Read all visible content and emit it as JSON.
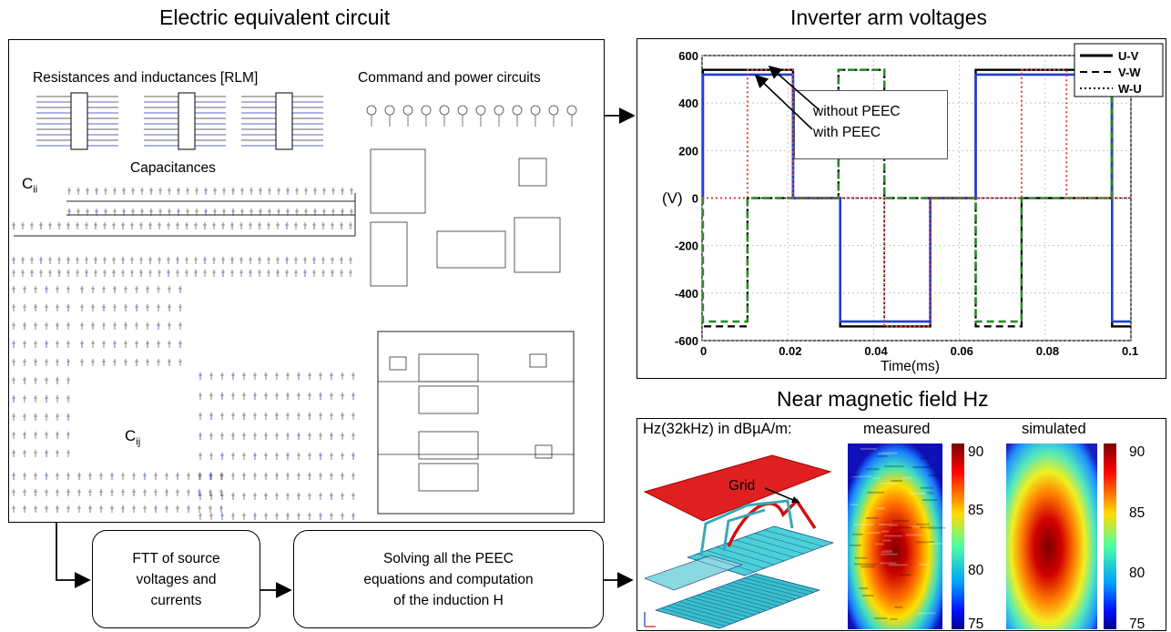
{
  "titles": {
    "circuit": "Electric equivalent circuit",
    "voltages": "Inverter arm voltages",
    "field": "Near magnetic field Hz"
  },
  "circuit_panel": {
    "rlm_label": "Resistances and inductances [RLM]",
    "command_label": "Command and power circuits",
    "cap_label": "Capacitances",
    "cii_main": "C",
    "cii_sub": "ii",
    "cij_main": "C",
    "cij_sub": "ij"
  },
  "flow_steps": [
    {
      "text": "FTT of source\nvoltages and\ncurrents"
    },
    {
      "text": "Solving all the PEEC\nequations and computation\nof the induction H"
    }
  ],
  "voltage_chart": {
    "annotation_without": "without PEEC",
    "annotation_with": "with PEEC"
  },
  "field_panel": {
    "header": "Hz(32kHz) in dBµA/m:",
    "measured": "measured",
    "simulated": "simulated",
    "grid_label": "Grid",
    "colorbar_ticks": [
      "90",
      "85",
      "80",
      "75"
    ]
  },
  "chart_data": {
    "type": "line",
    "ylabel": "(V)",
    "xlabel": "Time(ms)",
    "xlim": [
      0,
      0.1
    ],
    "ylim": [
      -600,
      600
    ],
    "xticks": [
      "0",
      "0.02",
      "0.04",
      "0.06",
      "0.08",
      "0.1"
    ],
    "yticks": [
      "600",
      "400",
      "200",
      "0",
      "-200",
      "-400",
      "-600"
    ],
    "grid": true,
    "legend_position": "top-right",
    "series": [
      {
        "name": "U-V",
        "style": "solid",
        "color": "#000000",
        "x": [
          0,
          0.0002,
          0.0002,
          0.0212,
          0.0212,
          0.0322,
          0.0322,
          0.0532,
          0.0532,
          0.0638,
          0.0638,
          0.0956,
          0.0956,
          0.1
        ],
        "y": [
          0,
          0,
          540,
          540,
          0,
          0,
          -540,
          -540,
          0,
          0,
          540,
          540,
          -540,
          -540
        ]
      },
      {
        "name": "V-W",
        "style": "dashed",
        "color": "#000000",
        "x": [
          0,
          0.0002,
          0.0002,
          0.0106,
          0.0106,
          0.0318,
          0.0318,
          0.0425,
          0.0425,
          0.0638,
          0.0638,
          0.0745,
          0.0745,
          0.0955,
          0.0955,
          0.1
        ],
        "y": [
          0,
          0,
          -540,
          -540,
          0,
          0,
          540,
          540,
          0,
          0,
          -540,
          -540,
          0,
          0,
          540,
          540
        ]
      },
      {
        "name": "W-U",
        "style": "dotted",
        "color": "#000000",
        "x": [
          0,
          0.0106,
          0.0106,
          0.0212,
          0.0212,
          0.0425,
          0.0425,
          0.0532,
          0.0532,
          0.0745,
          0.0745,
          0.085,
          0.085,
          0.1
        ],
        "y": [
          0,
          0,
          0,
          0,
          0,
          0,
          -540,
          -540,
          0,
          0,
          0,
          0,
          0,
          0
        ]
      },
      {
        "name": "",
        "style": "solid",
        "color": "#1f3fd6",
        "x": [
          0,
          0.0002,
          0.0002,
          0.0212,
          0.0212,
          0.0322,
          0.0322,
          0.0532,
          0.0532,
          0.0638,
          0.0638,
          0.0956,
          0.0956,
          0.1
        ],
        "y": [
          0,
          0,
          520,
          520,
          0,
          0,
          -520,
          -520,
          0,
          0,
          520,
          520,
          -520,
          -520
        ]
      },
      {
        "name": "",
        "style": "dashed",
        "color": "#2a8a2a",
        "x": [
          0,
          0.0002,
          0.0002,
          0.0106,
          0.0106,
          0.0318,
          0.0318,
          0.0425,
          0.0425,
          0.0638,
          0.0638,
          0.0745,
          0.0745,
          0.0955,
          0.0955,
          0.1
        ],
        "y": [
          0,
          0,
          -520,
          -520,
          0,
          0,
          540,
          540,
          0,
          0,
          -520,
          -520,
          0,
          0,
          540,
          540
        ]
      },
      {
        "name": "",
        "style": "dotted",
        "color": "#e04040",
        "x": [
          0,
          0.0106,
          0.0106,
          0.0212,
          0.0212,
          0.0425,
          0.0425,
          0.0532,
          0.0532,
          0.0745,
          0.0745,
          0.085,
          0.085,
          0.1
        ],
        "y": [
          0,
          0,
          540,
          540,
          0,
          0,
          -540,
          -540,
          0,
          0,
          540,
          540,
          0,
          0
        ]
      }
    ]
  },
  "colors": {
    "measured_high": "#8b0000",
    "simulated_high": "#8b0000",
    "colormap_low": "#00008b",
    "grid_plane": "#e02020",
    "structure": "#2fb8c8"
  }
}
